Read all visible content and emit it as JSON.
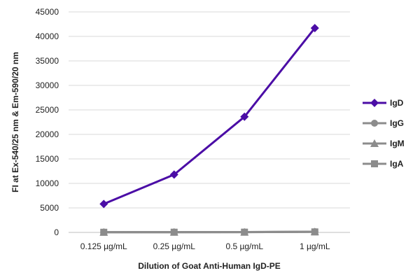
{
  "chart_data": {
    "type": "line",
    "title": "",
    "xlabel": "Dilution of Goat Anti-Human IgD-PE",
    "ylabel": "FI at Ex-540/25 nm & Em-590/20 nm",
    "categories": [
      "0.125 µg/mL",
      "0.25 µg/mL",
      "0.5 µg/mL",
      "1 µg/mL"
    ],
    "ylim": [
      0,
      45000
    ],
    "yticks": [
      0,
      5000,
      10000,
      15000,
      20000,
      25000,
      30000,
      35000,
      40000,
      45000
    ],
    "grid": true,
    "legend_position": "right",
    "series": [
      {
        "name": "IgD",
        "values": [
          5800,
          11800,
          23600,
          41700
        ],
        "color": "#4B0DA6",
        "marker": "diamond"
      },
      {
        "name": "IgG",
        "values": [
          50,
          60,
          80,
          150
        ],
        "color": "#8C8C8C",
        "marker": "circle"
      },
      {
        "name": "IgM",
        "values": [
          40,
          50,
          60,
          120
        ],
        "color": "#8C8C8C",
        "marker": "triangle"
      },
      {
        "name": "IgA",
        "values": [
          30,
          40,
          50,
          100
        ],
        "color": "#8C8C8C",
        "marker": "square"
      }
    ]
  }
}
